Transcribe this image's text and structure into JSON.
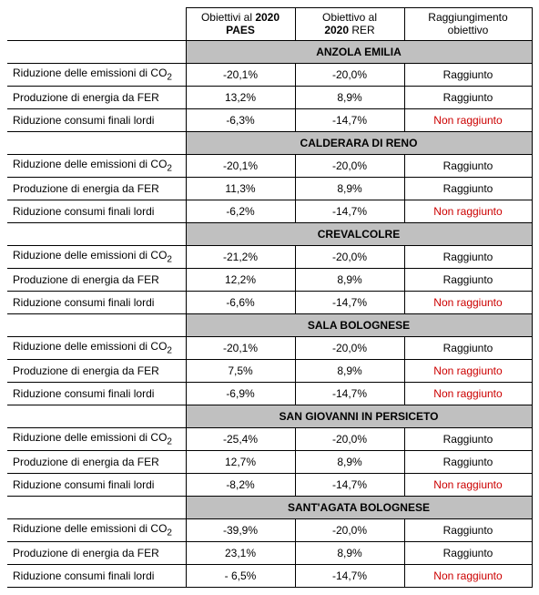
{
  "headers": {
    "col1_line1": "Obiettivi al ",
    "col1_bold": "2020",
    "col1_line2": "PAES",
    "col2_line1": "Obiettivo al",
    "col2_bold_line2a": "2020",
    "col2_line2b": " RER",
    "col3_line1": "Raggiungimento",
    "col3_line2": "obiettivo"
  },
  "row_labels": {
    "co2": "Riduzione delle emissioni di CO",
    "co2_sub": "2",
    "fer": "Produzione di energia da FER",
    "lordi": "Riduzione consumi finali lordi"
  },
  "status": {
    "achieved": "Raggiunto",
    "not_achieved": "Non raggiunto"
  },
  "sections": [
    {
      "title": "ANZOLA EMILIA",
      "rows": [
        {
          "paes": "-20,1%",
          "rer": "-20,0%",
          "achieved": true
        },
        {
          "paes": "13,2%",
          "rer": "8,9%",
          "achieved": true
        },
        {
          "paes": "-6,3%",
          "rer": "-14,7%",
          "achieved": false
        }
      ]
    },
    {
      "title": "CALDERARA DI RENO",
      "rows": [
        {
          "paes": "-20,1%",
          "rer": "-20,0%",
          "achieved": true
        },
        {
          "paes": "11,3%",
          "rer": "8,9%",
          "achieved": true
        },
        {
          "paes": "-6,2%",
          "rer": "-14,7%",
          "achieved": false
        }
      ]
    },
    {
      "title": "CREVALCOLRE",
      "rows": [
        {
          "paes": "-21,2%",
          "rer": "-20,0%",
          "achieved": true
        },
        {
          "paes": "12,2%",
          "rer": "8,9%",
          "achieved": true
        },
        {
          "paes": "-6,6%",
          "rer": "-14,7%",
          "achieved": false
        }
      ]
    },
    {
      "title": "SALA BOLOGNESE",
      "rows": [
        {
          "paes": "-20,1%",
          "rer": "-20,0%",
          "achieved": true
        },
        {
          "paes": "7,5%",
          "rer": "8,9%",
          "achieved": false
        },
        {
          "paes": "-6,9%",
          "rer": "-14,7%",
          "achieved": false
        }
      ]
    },
    {
      "title": "SAN GIOVANNI IN PERSICETO",
      "rows": [
        {
          "paes": "-25,4%",
          "rer": "-20,0%",
          "achieved": true
        },
        {
          "paes": "12,7%",
          "rer": "8,9%",
          "achieved": true
        },
        {
          "paes": "-8,2%",
          "rer": "-14,7%",
          "achieved": false
        }
      ]
    },
    {
      "title": "SANT'AGATA BOLOGNESE",
      "rows": [
        {
          "paes": "-39,9%",
          "rer": "-20,0%",
          "achieved": true
        },
        {
          "paes": "23,1%",
          "rer": "8,9%",
          "achieved": true
        },
        {
          "paes": "- 6,5%",
          "rer": "-14,7%",
          "achieved": false
        }
      ]
    }
  ]
}
